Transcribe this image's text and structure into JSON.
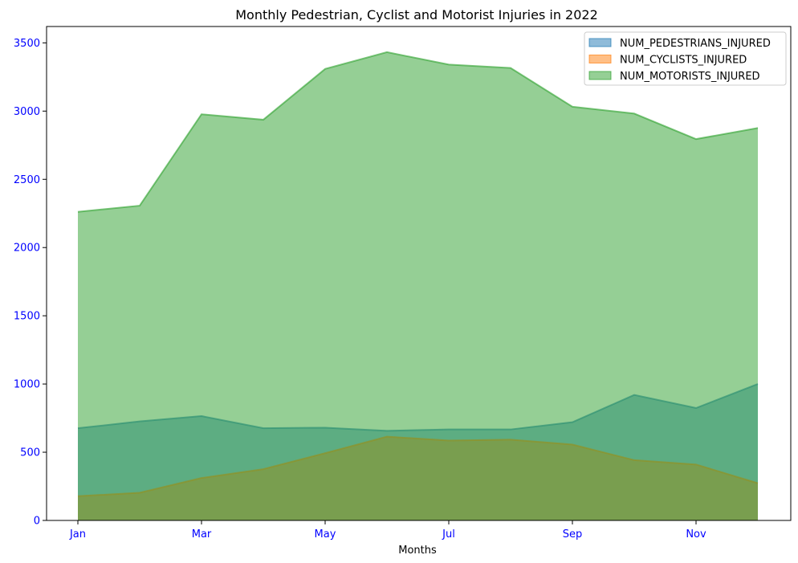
{
  "chart_data": {
    "type": "area",
    "title": "Monthly Pedestrian, Cyclist and Motorist Injuries in 2022",
    "xlabel": "Months",
    "ylabel": "",
    "x": [
      "Jan",
      "Feb",
      "Mar",
      "Apr",
      "May",
      "Jun",
      "Jul",
      "Aug",
      "Sep",
      "Oct",
      "Nov",
      "Dec"
    ],
    "x_tick_labels": [
      "Jan",
      "Mar",
      "May",
      "Jul",
      "Sep",
      "Nov"
    ],
    "y_ticks": [
      0,
      500,
      1000,
      1500,
      2000,
      2500,
      3000,
      3500
    ],
    "ylim": [
      0,
      3620
    ],
    "grid": false,
    "stacked": false,
    "legend_position": "top-right",
    "series": [
      {
        "name": "NUM_PEDESTRIANS_INJURED",
        "color": "#1f77b4",
        "values": [
          676,
          726,
          765,
          676,
          680,
          657,
          667,
          667,
          720,
          920,
          824,
          1000
        ]
      },
      {
        "name": "NUM_CYCLISTS_INJURED",
        "color": "#ff7f0e",
        "values": [
          178,
          203,
          311,
          376,
          493,
          614,
          586,
          592,
          556,
          442,
          410,
          273
        ]
      },
      {
        "name": "NUM_MOTORISTS_INJURED",
        "color": "#2ca02c",
        "values": [
          2262,
          2307,
          2977,
          2937,
          3309,
          3432,
          3341,
          3316,
          3032,
          2982,
          2795,
          2876
        ]
      }
    ]
  }
}
